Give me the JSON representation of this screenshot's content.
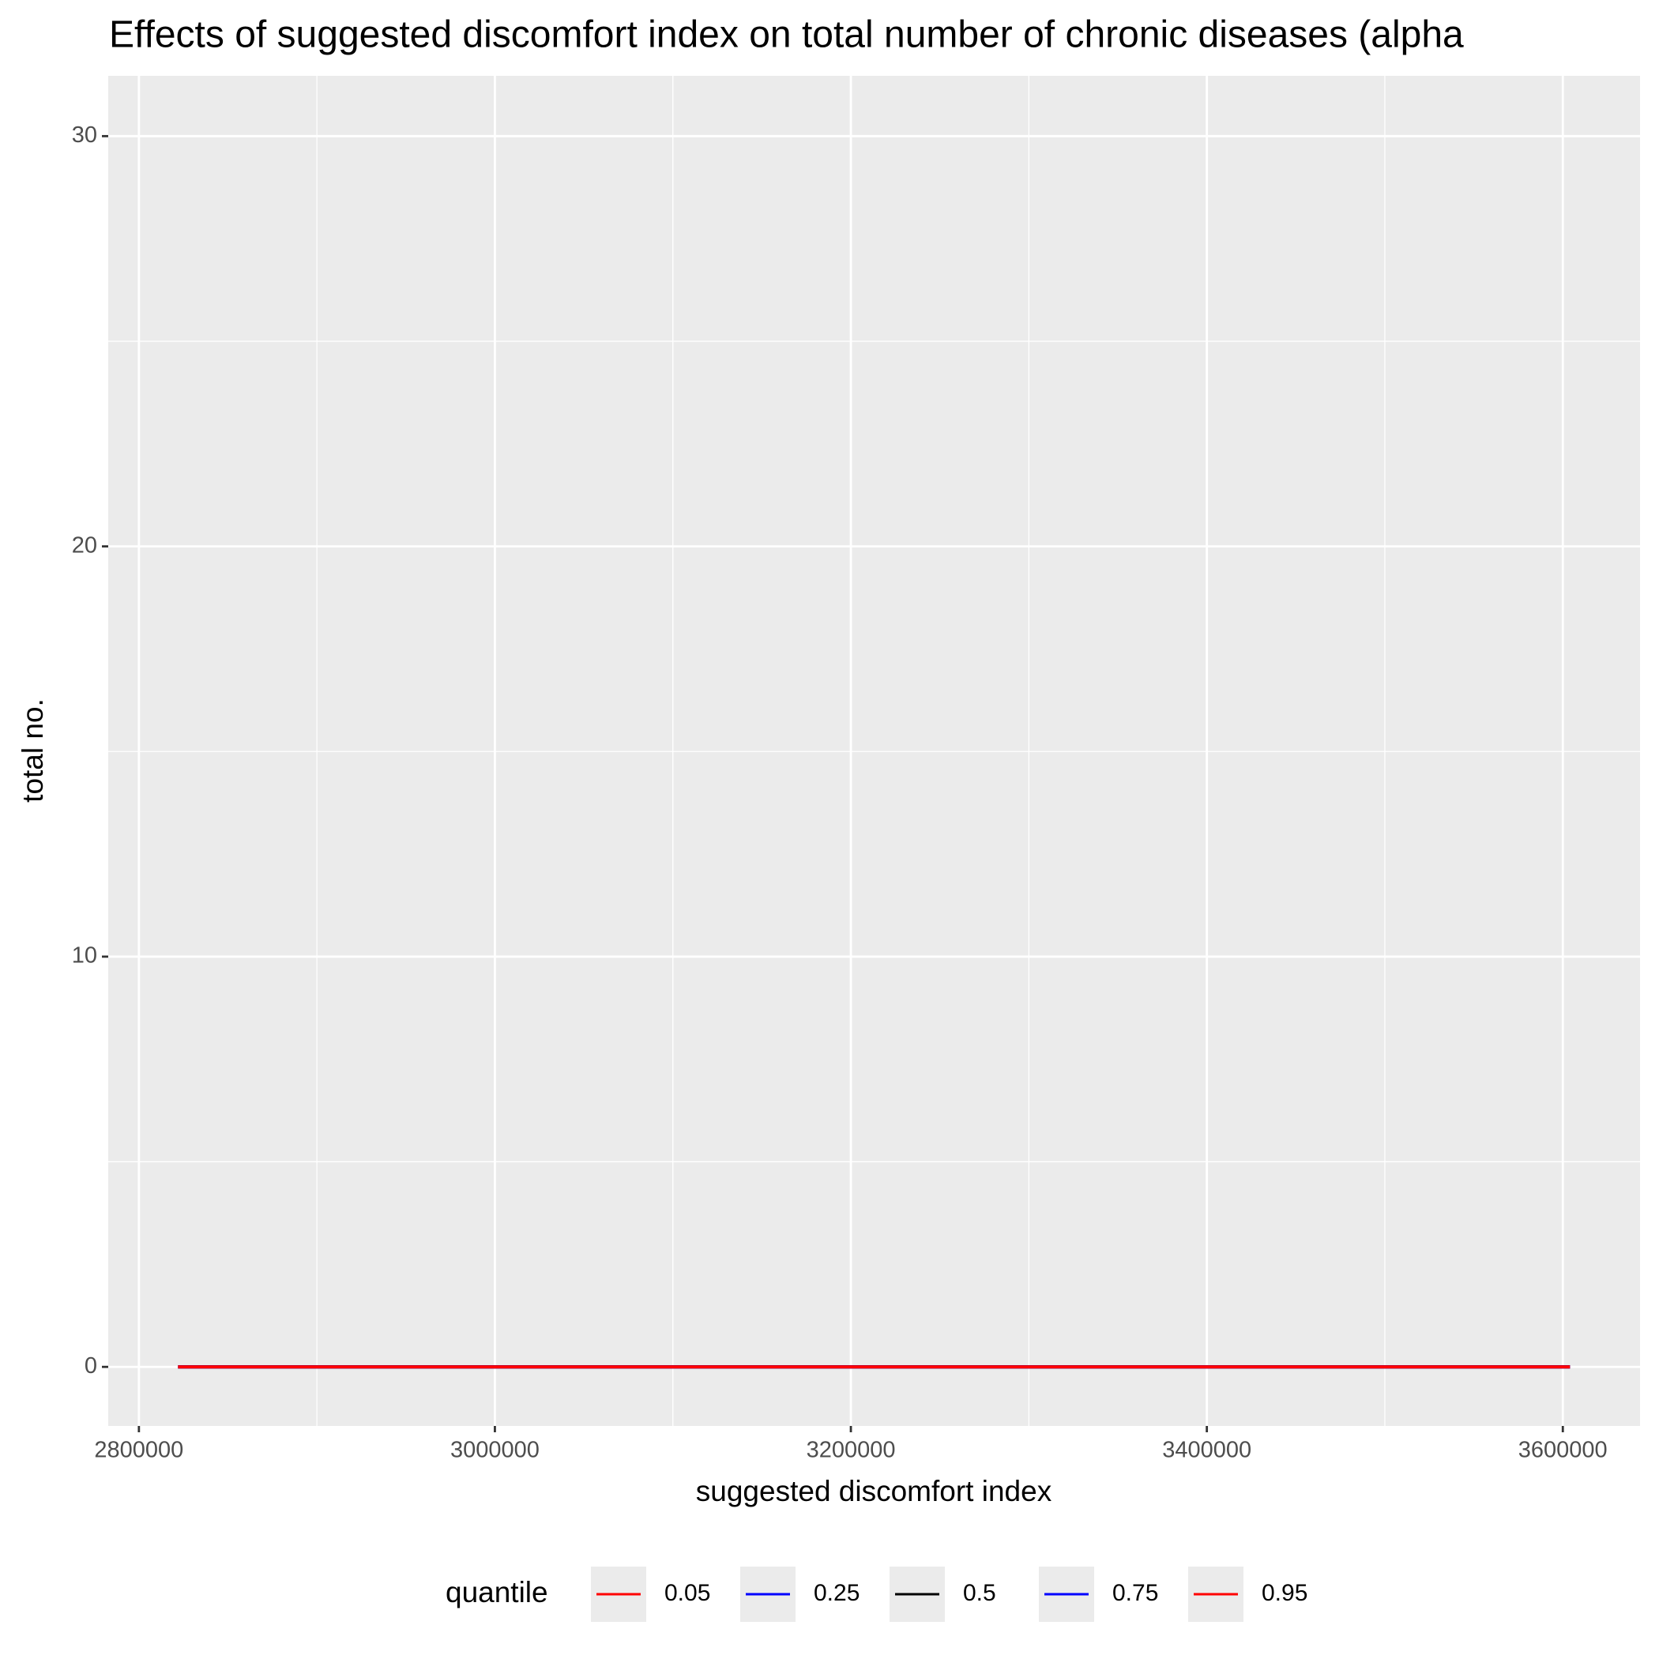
{
  "chart_data": {
    "type": "line",
    "title": "Effects of suggested discomfort index on total number of chronic diseases (alpha",
    "x_label": "suggested discomfort index",
    "y_label": "total no.",
    "x": [
      2822000,
      3604000
    ],
    "series": [
      {
        "name": "0.05",
        "color": "#ff0000",
        "values": [
          0,
          0
        ]
      },
      {
        "name": "0.25",
        "color": "#0000ff",
        "values": [
          0,
          0
        ]
      },
      {
        "name": "0.5",
        "color": "#000000",
        "values": [
          0,
          0
        ]
      },
      {
        "name": "0.75",
        "color": "#0000ff",
        "values": [
          0,
          0
        ]
      },
      {
        "name": "0.95",
        "color": "#ff0000",
        "values": [
          0,
          0
        ]
      }
    ],
    "legend_title": "quantile",
    "legend_position": "bottom",
    "xlim": [
      2782764,
      3643388
    ],
    "ylim": [
      -1.44,
      31.47
    ],
    "xticks": [
      2800000,
      3000000,
      3200000,
      3400000,
      3600000
    ],
    "yticks": [
      0,
      10,
      20,
      30
    ],
    "grid": true
  }
}
